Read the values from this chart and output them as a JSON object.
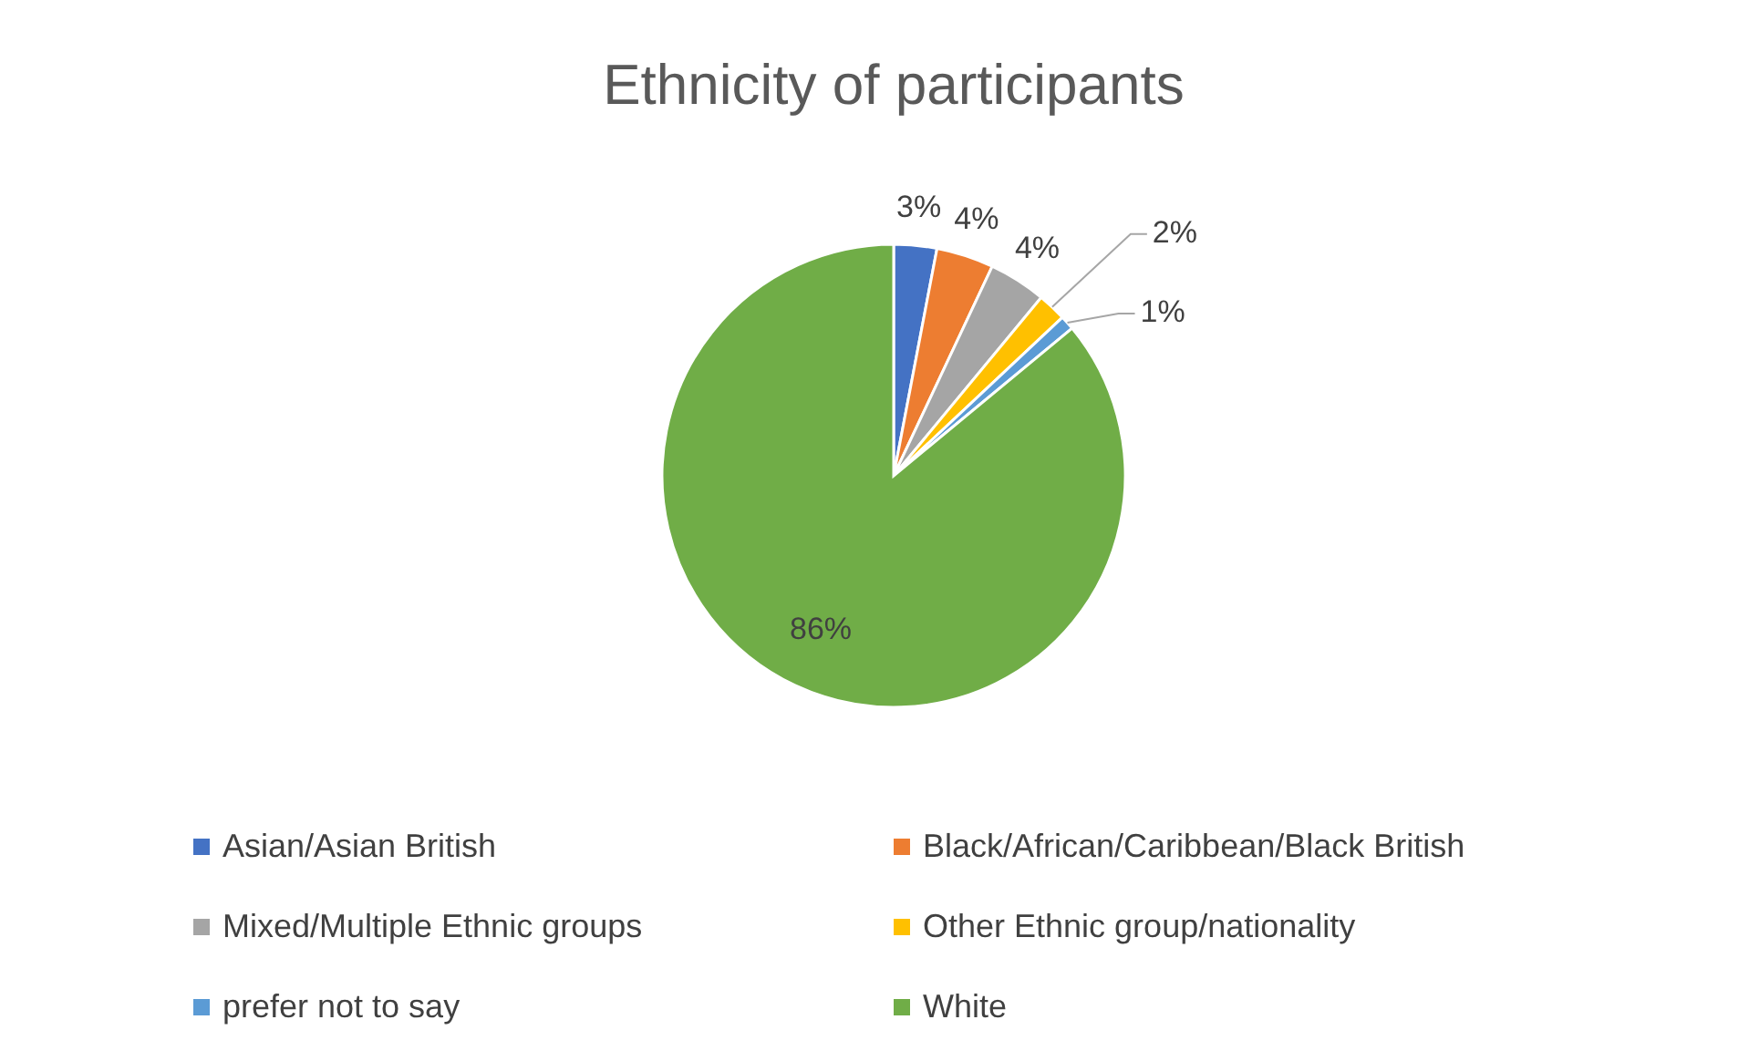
{
  "chart_data": {
    "type": "pie",
    "title": "Ethnicity of participants",
    "categories": [
      "Asian/Asian British",
      "Black/African/Caribbean/Black British",
      "Mixed/Multiple Ethnic groups",
      "Other Ethnic group/nationality",
      "prefer not to say",
      "White"
    ],
    "values": [
      3,
      4,
      4,
      2,
      1,
      86
    ],
    "colors": [
      "#4472c4",
      "#ed7d31",
      "#a5a5a5",
      "#ffc000",
      "#5b9bd5",
      "#70ad47"
    ],
    "value_labels": [
      "3%",
      "4%",
      "4%",
      "2%",
      "1%",
      "86%"
    ],
    "legend": "bottom"
  }
}
